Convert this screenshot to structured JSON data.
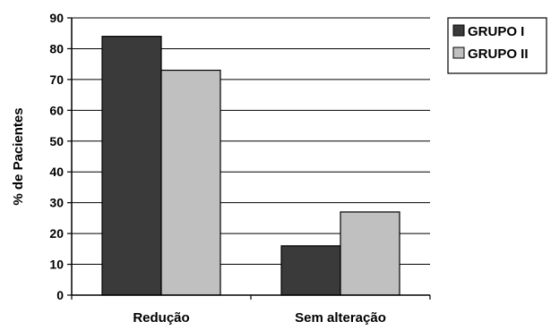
{
  "chart_data": {
    "type": "bar",
    "title": "",
    "xlabel": "",
    "ylabel": "% de Pacientes",
    "categories": [
      "Redução",
      "Sem alteração"
    ],
    "series": [
      {
        "name": "GRUPO I",
        "values": [
          84,
          16
        ],
        "color": "#3a3a3a"
      },
      {
        "name": "GRUPO II",
        "values": [
          73,
          27
        ],
        "color": "#c0c0c0"
      }
    ],
    "ylim": [
      0,
      90
    ],
    "yticks": [
      0,
      10,
      20,
      30,
      40,
      50,
      60,
      70,
      80,
      90
    ],
    "grid": true,
    "legend_position": "top-right"
  }
}
